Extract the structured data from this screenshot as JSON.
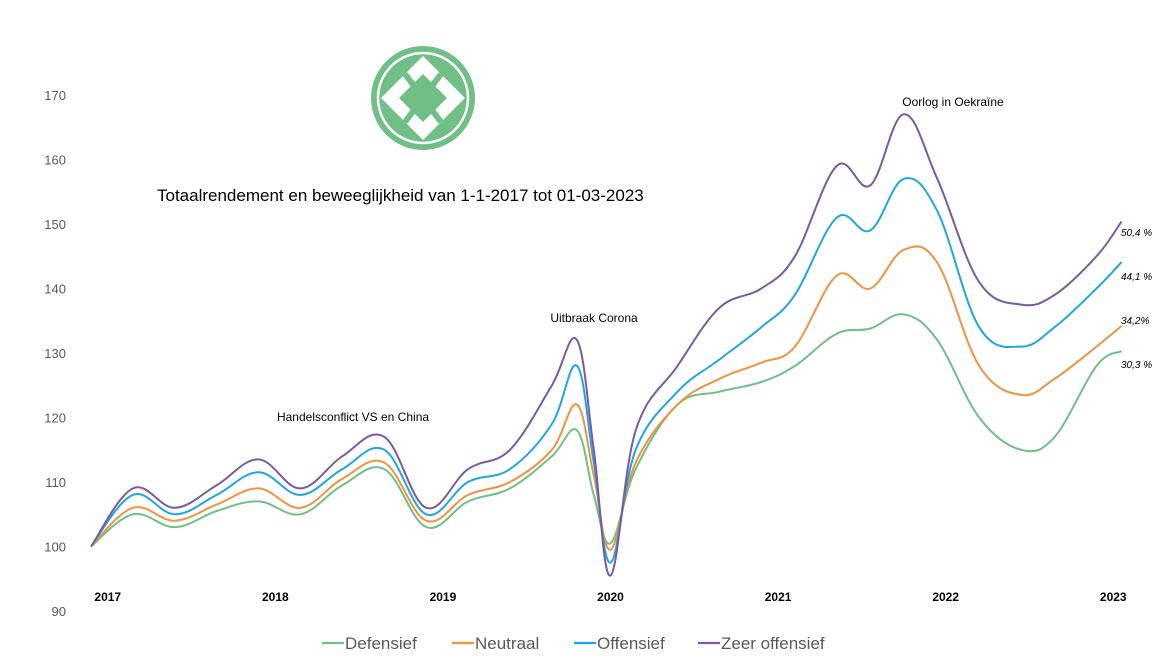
{
  "chart_data": {
    "type": "line",
    "title": "Totaalrendement en beweeglijkheid van 1-1-2017 tot 01-03-2023",
    "ylim": [
      90,
      170
    ],
    "yticks": [
      90,
      100,
      110,
      120,
      130,
      140,
      150,
      160,
      170
    ],
    "xlim": [
      2017.0,
      2023.17
    ],
    "xticks": [
      {
        "label": "2017",
        "value": 2017.1
      },
      {
        "label": "2018",
        "value": 2018.1
      },
      {
        "label": "2019",
        "value": 2019.1
      },
      {
        "label": "2020",
        "value": 2020.1
      },
      {
        "label": "2021",
        "value": 2021.1
      },
      {
        "label": "2022",
        "value": 2022.1
      },
      {
        "label": "2023",
        "value": 2023.1
      }
    ],
    "x": [
      2017.0,
      2017.25,
      2017.5,
      2017.75,
      2018.0,
      2018.25,
      2018.5,
      2018.75,
      2019.0,
      2019.25,
      2019.5,
      2019.75,
      2019.9,
      2020.0,
      2020.1,
      2020.25,
      2020.5,
      2020.75,
      2021.0,
      2021.2,
      2021.45,
      2021.65,
      2021.85,
      2022.05,
      2022.3,
      2022.55,
      2022.75,
      2023.0,
      2023.15
    ],
    "series": [
      {
        "name": "Defensief",
        "color": "#6fbf87",
        "values": [
          100,
          105,
          103,
          105.5,
          107,
          105,
          109.5,
          112,
          103,
          107,
          109,
          114,
          118,
          108,
          100.5,
          112,
          122,
          124,
          125.5,
          128,
          133,
          133.8,
          136,
          132,
          120,
          115,
          117,
          128,
          130.3
        ]
      },
      {
        "name": "Neutraal",
        "color": "#f0923e",
        "values": [
          100,
          106,
          104,
          106.5,
          109,
          106,
          110.5,
          113,
          104,
          108,
          110,
          115,
          122,
          111,
          99.5,
          113,
          122,
          126,
          128.5,
          131,
          142,
          140,
          146,
          144,
          128,
          123.5,
          126,
          131,
          134.2
        ]
      },
      {
        "name": "Offensief",
        "color": "#1ea6e3",
        "values": [
          100,
          108,
          105,
          108,
          111.5,
          108,
          112,
          115,
          105,
          110,
          112,
          119,
          128,
          113,
          97.5,
          115,
          124,
          129,
          134,
          139,
          151,
          149,
          157,
          152,
          134,
          131,
          134,
          140,
          144.1
        ]
      },
      {
        "name": "Zeer offensief",
        "color": "#7a5aa0",
        "values": [
          100,
          109,
          106,
          109.5,
          113.5,
          109,
          114,
          117,
          106,
          112,
          115,
          125,
          132,
          115,
          95.5,
          118,
          128,
          137,
          140,
          145,
          159,
          156,
          167,
          157,
          141,
          137.5,
          139,
          145,
          150.4
        ]
      }
    ],
    "end_labels": [
      "50,4 %",
      "44,1 %",
      "34,2%",
      "30,3 %"
    ],
    "annotations": [
      "Handelsconflict VS en China",
      "Uitbraak Corona",
      "Oorlog in Oekraïne"
    ],
    "legend": "bottom",
    "grid": false
  }
}
